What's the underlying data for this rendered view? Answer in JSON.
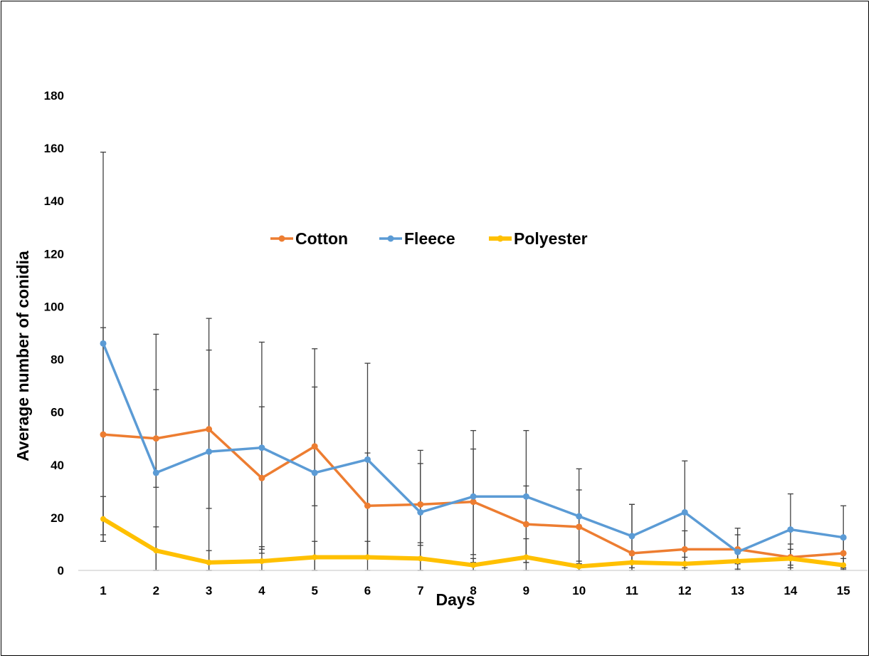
{
  "chart_data": {
    "type": "line",
    "xlabel": "Days",
    "ylabel": "Average number of conidia",
    "ylim": [
      0,
      180
    ],
    "ytick_step": 20,
    "grid": false,
    "legend_position": "inside-top-center",
    "x": [
      "1",
      "2",
      "3",
      "4",
      "5",
      "6",
      "7",
      "8",
      "9",
      "10",
      "11",
      "12",
      "13",
      "14",
      "15"
    ],
    "series": [
      {
        "name": "Cotton",
        "color": "#ED7D31",
        "values": [
          51.5,
          50,
          53.5,
          35,
          47,
          24.5,
          25,
          26,
          17.5,
          16.5,
          6.5,
          8,
          8,
          5,
          6.5
        ],
        "errors": [
          40.5,
          18.5,
          30,
          27,
          22.5,
          20,
          15.5,
          20,
          14.5,
          14,
          18.5,
          7,
          5.5,
          5,
          5.5
        ]
      },
      {
        "name": "Fleece",
        "color": "#5B9BD5",
        "values": [
          86,
          37,
          45,
          46.5,
          37,
          42,
          22,
          28,
          28,
          20.5,
          13,
          22,
          7,
          15.5,
          12.5
        ],
        "errors": [
          72.5,
          52.5,
          50.5,
          40,
          47,
          36.5,
          23.5,
          25,
          25,
          18,
          12,
          19.5,
          9,
          13.5,
          12
        ]
      },
      {
        "name": "Polyester",
        "color": "#FFC000",
        "values": [
          19.5,
          7.5,
          3,
          3.5,
          5,
          5,
          4.5,
          2,
          5,
          1.5,
          3,
          2.5,
          3.5,
          4.5,
          2
        ],
        "errors": [
          8.5,
          9,
          4.5,
          5.5,
          6,
          6,
          6,
          2.5,
          7,
          2,
          3,
          2.5,
          3,
          3.5,
          2.5
        ]
      }
    ]
  }
}
